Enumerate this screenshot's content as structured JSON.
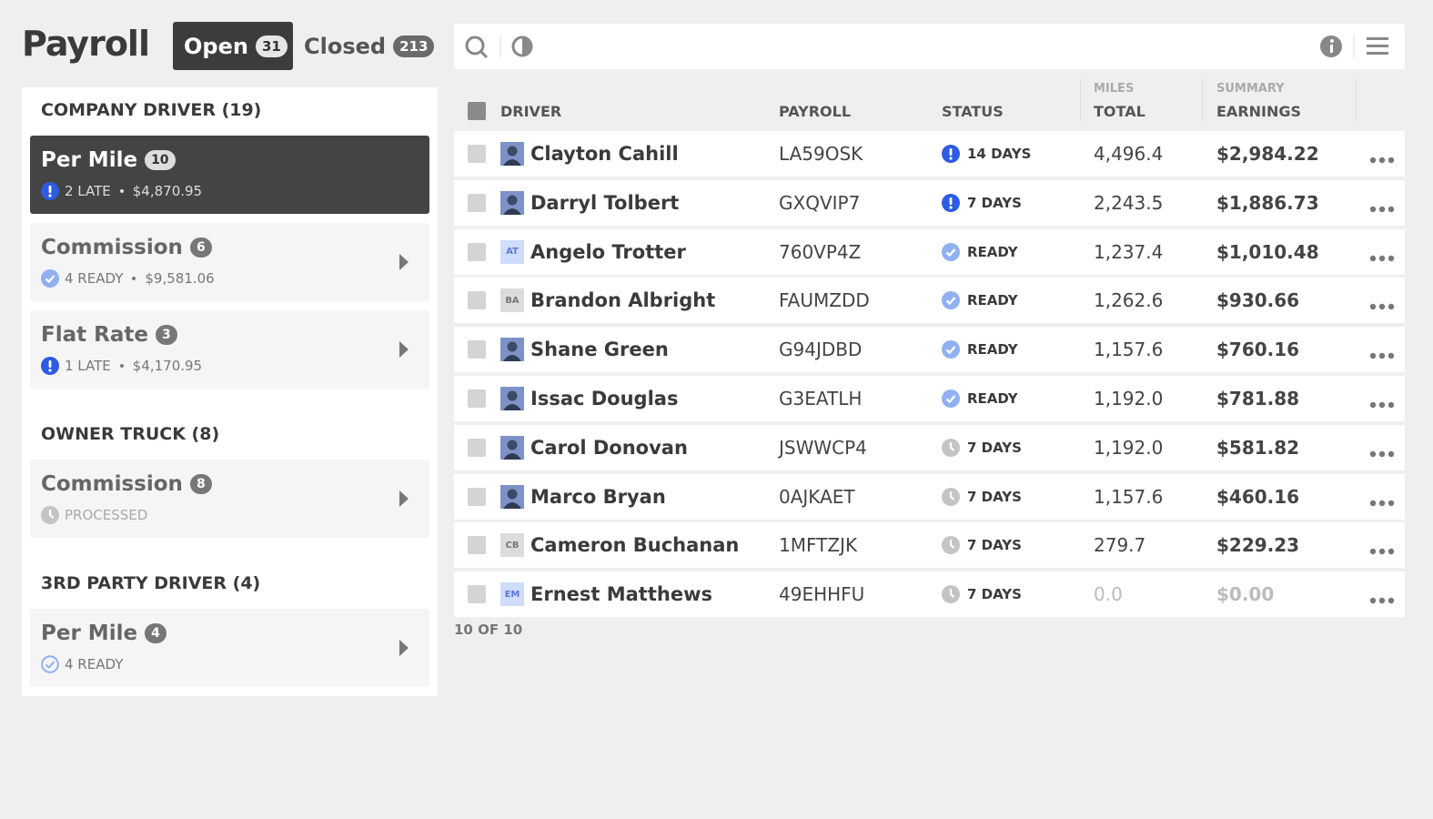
{
  "header": {
    "title": "Payroll",
    "tabs": [
      {
        "label": "Open",
        "count": 31,
        "active": true
      },
      {
        "label": "Closed",
        "count": 213,
        "active": false
      }
    ]
  },
  "sidebar": {
    "groups": [
      {
        "title": "COMPANY DRIVER (19)",
        "items": [
          {
            "name": "Per Mile",
            "count": 10,
            "status": "2 LATE",
            "amount": "$4,870.95",
            "icon": "late",
            "active": true
          },
          {
            "name": "Commission",
            "count": 6,
            "status": "4 READY",
            "amount": "$9,581.06",
            "icon": "ready",
            "active": false
          },
          {
            "name": "Flat Rate",
            "count": 3,
            "status": "1 LATE",
            "amount": "$4,170.95",
            "icon": "late",
            "active": false
          }
        ]
      },
      {
        "title": "OWNER TRUCK (8)",
        "items": [
          {
            "name": "Commission",
            "count": 8,
            "status": "PROCESSED",
            "icon": "processed",
            "active": false
          }
        ]
      },
      {
        "title": "3RD PARTY DRIVER (4)",
        "items": [
          {
            "name": "Per Mile",
            "count": 4,
            "status": "4 READY",
            "icon": "ready-outline",
            "active": false
          }
        ]
      }
    ]
  },
  "table": {
    "columns": {
      "driver": "DRIVER",
      "payroll": "PAYROLL",
      "status": "STATUS",
      "miles_group": "MILES",
      "miles": "TOTAL",
      "summary_group": "SUMMARY",
      "earnings": "EARNINGS"
    },
    "rows": [
      {
        "driver": "Clayton Cahill",
        "payroll": "LA59OSK",
        "icon": "late",
        "status": "14 DAYS",
        "miles": "4,496.4",
        "earnings": "$2,984.22",
        "muted": false
      },
      {
        "driver": "Darryl Tolbert",
        "payroll": "GXQVIP7",
        "icon": "late",
        "status": "7 DAYS",
        "miles": "2,243.5",
        "earnings": "$1,886.73",
        "muted": false
      },
      {
        "driver": "Angelo Trotter",
        "payroll": "760VP4Z",
        "icon": "ready",
        "status": "READY",
        "miles": "1,237.4",
        "earnings": "$1,010.48",
        "avatar_initials": "AT",
        "avatar_color": "#cfdcfb",
        "muted": false
      },
      {
        "driver": "Brandon Albright",
        "payroll": "FAUMZDD",
        "icon": "ready",
        "status": "READY",
        "miles": "1,262.6",
        "earnings": "$930.66",
        "avatar_initials": "BA",
        "avatar_color": "#dcdcdc",
        "muted": false
      },
      {
        "driver": "Shane Green",
        "payroll": "G94JDBD",
        "icon": "ready",
        "status": "READY",
        "miles": "1,157.6",
        "earnings": "$760.16",
        "muted": false
      },
      {
        "driver": "Issac Douglas",
        "payroll": "G3EATLH",
        "icon": "ready",
        "status": "READY",
        "miles": "1,192.0",
        "earnings": "$781.88",
        "muted": false
      },
      {
        "driver": "Carol Donovan",
        "payroll": "JSWWCP4",
        "icon": "pending",
        "status": "7 DAYS",
        "miles": "1,192.0",
        "earnings": "$581.82",
        "muted": false
      },
      {
        "driver": "Marco Bryan",
        "payroll": "0AJKAET",
        "icon": "pending",
        "status": "7 DAYS",
        "miles": "1,157.6",
        "earnings": "$460.16",
        "muted": false
      },
      {
        "driver": "Cameron Buchanan",
        "payroll": "1MFTZJK",
        "icon": "pending",
        "status": "7 DAYS",
        "miles": "279.7",
        "earnings": "$229.23",
        "avatar_initials": "CB",
        "avatar_color": "#dcdcdc",
        "muted": false
      },
      {
        "driver": "Ernest Matthews",
        "payroll": "49EHHFU",
        "icon": "pending",
        "status": "7 DAYS",
        "miles": "0.0",
        "earnings": "$0.00",
        "avatar_initials": "EM",
        "avatar_color": "#cfdcfb",
        "muted": true
      }
    ],
    "footer": "10 OF 10"
  }
}
